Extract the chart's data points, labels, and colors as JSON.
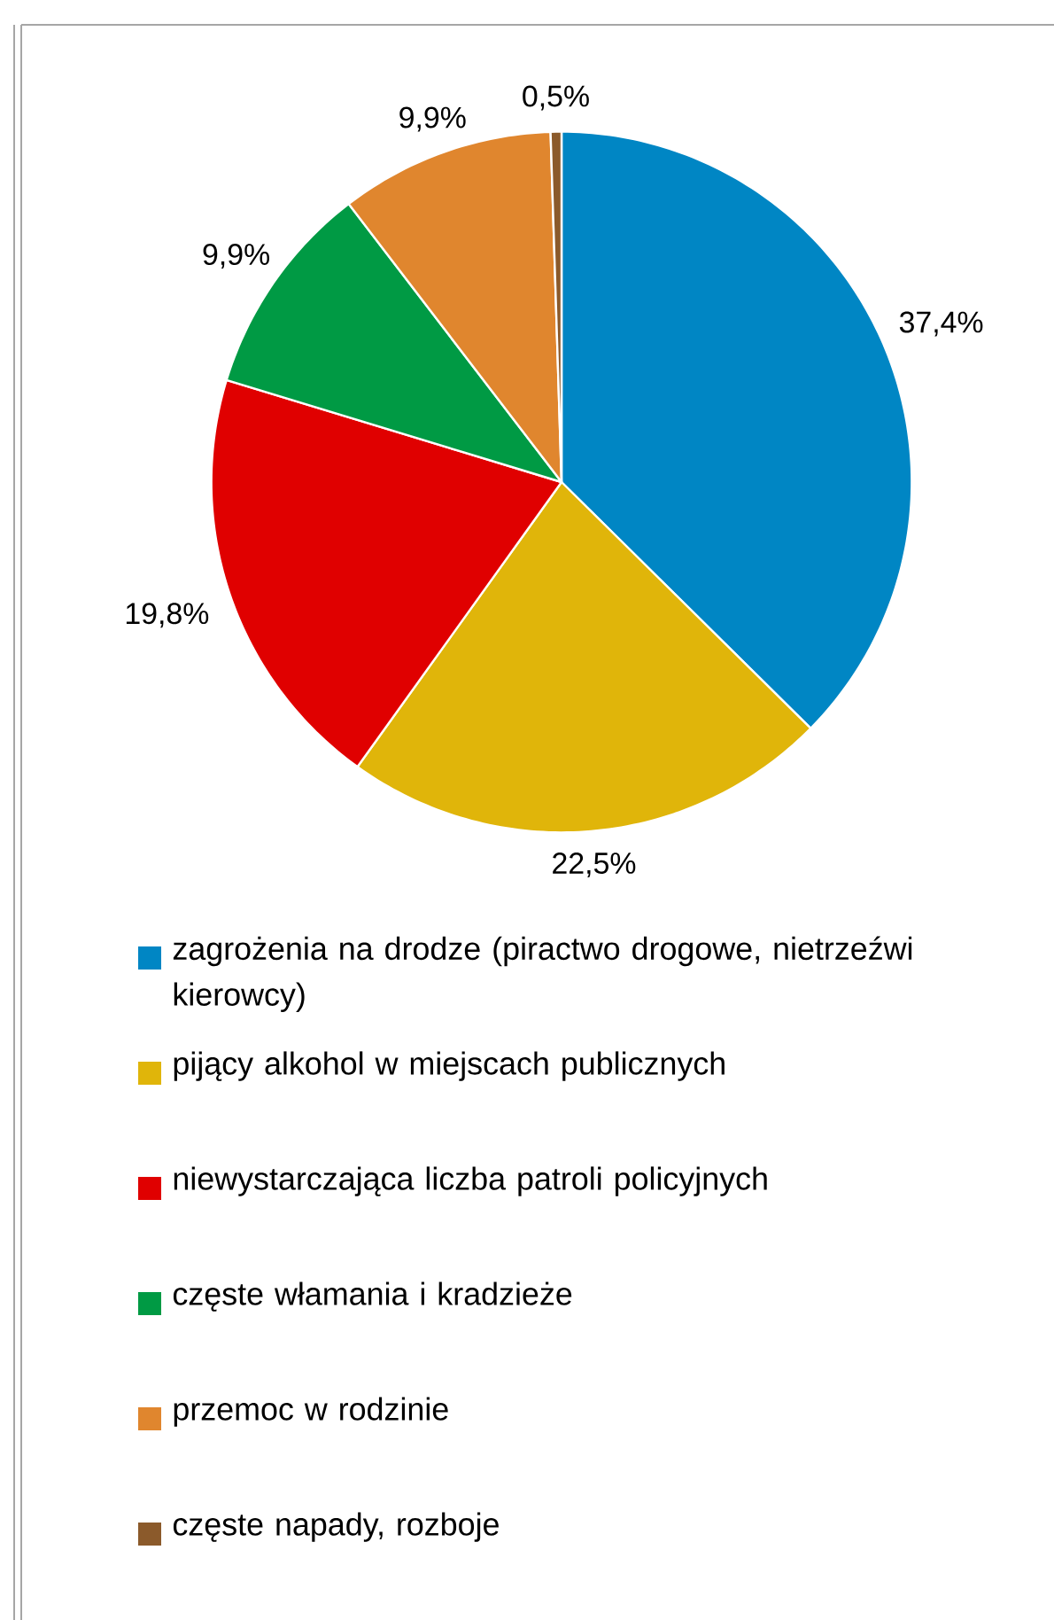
{
  "chart_data": {
    "type": "pie",
    "categories": [
      "zagrożenia na drodze (piractwo drogowe, nietrzeźwi kierowcy)",
      "pijący alkohol w miejscach publicznych",
      "niewystarczająca liczba patroli policyjnych",
      "częste włamania i kradzieże",
      "przemoc w rodzinie",
      "częste napady, rozboje"
    ],
    "values": [
      37.4,
      22.5,
      19.8,
      9.9,
      9.9,
      0.5
    ],
    "value_labels": [
      "37,4%",
      "22,5%",
      "19,8%",
      "9,9%",
      "9,9%",
      "0,5%"
    ],
    "colors": [
      "#0086c4",
      "#e0b50a",
      "#e00000",
      "#009a44",
      "#e0862e",
      "#8b5a2b"
    ],
    "legend": "bottom"
  }
}
